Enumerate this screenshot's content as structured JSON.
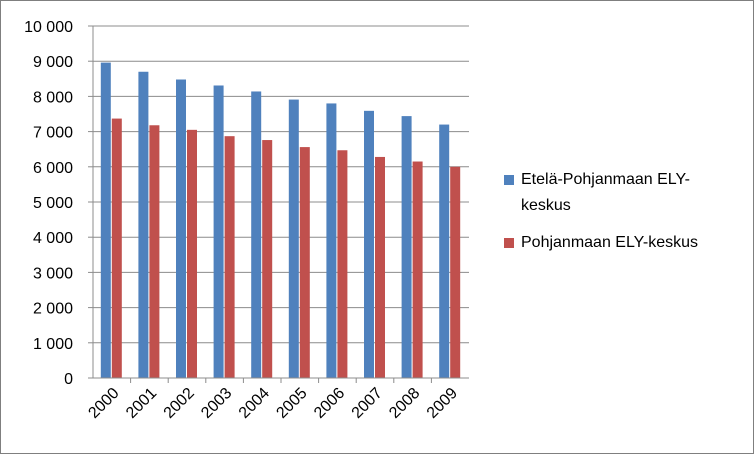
{
  "chart_data": {
    "type": "bar",
    "title": "",
    "xlabel": "",
    "ylabel": "",
    "categories": [
      "2000",
      "2001",
      "2002",
      "2003",
      "2004",
      "2005",
      "2006",
      "2007",
      "2008",
      "2009"
    ],
    "series": [
      {
        "name": "Etelä-Pohjanmaan ELY-keskus",
        "color": "#4f81bd",
        "values": [
          8960,
          8700,
          8480,
          8310,
          8140,
          7910,
          7800,
          7590,
          7440,
          7200
        ]
      },
      {
        "name": "Pohjanmaan ELY-keskus",
        "color": "#c0504d",
        "values": [
          7370,
          7180,
          7050,
          6870,
          6760,
          6560,
          6470,
          6280,
          6150,
          6000
        ]
      }
    ],
    "ylim": [
      0,
      10000
    ],
    "y_ticks": [
      "0",
      "1 000",
      "2 000",
      "3 000",
      "4 000",
      "5 000",
      "6 000",
      "7 000",
      "8 000",
      "9 000",
      "10 000"
    ],
    "grid": true,
    "legend_position": "right",
    "legend_lines": [
      [
        "Etelä-Pohjanmaan ELY-",
        "keskus"
      ],
      [
        "Pohjanmaan ELY-keskus"
      ]
    ]
  }
}
